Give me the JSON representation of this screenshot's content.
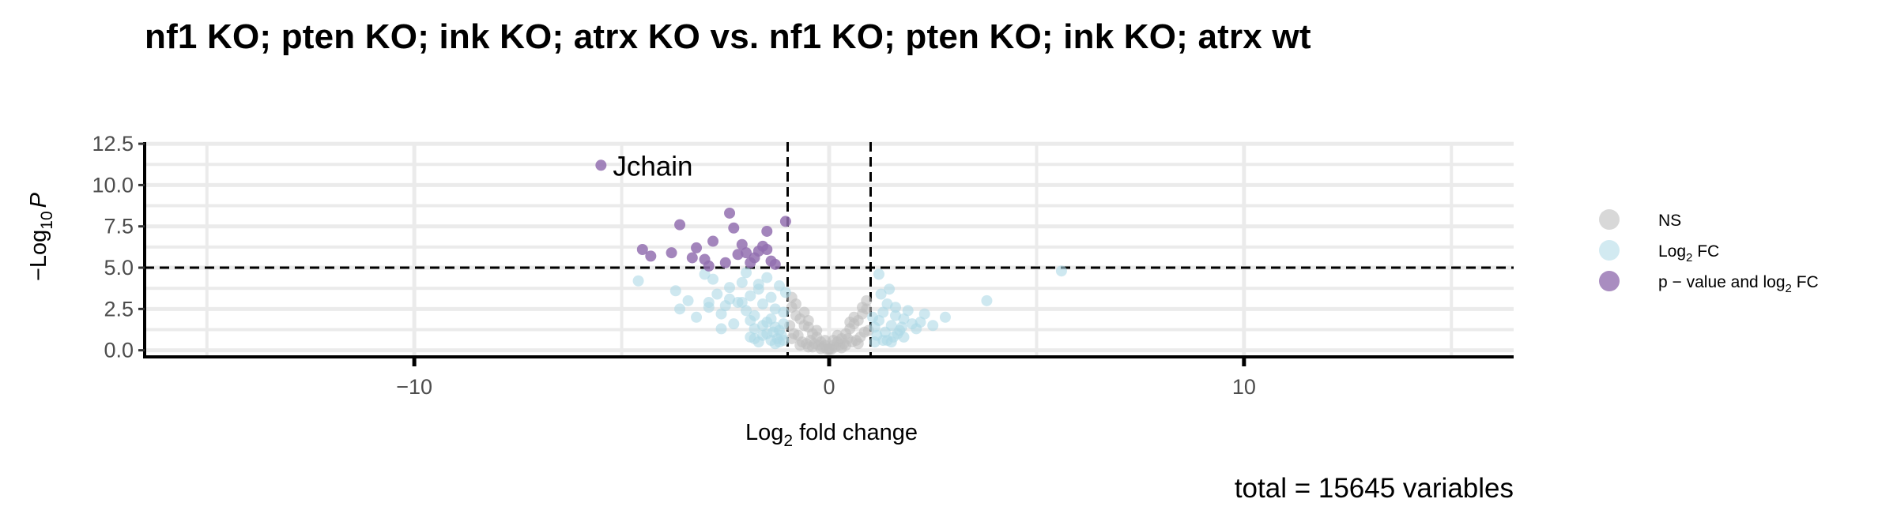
{
  "chart_data": {
    "type": "scatter",
    "title": "nf1 KO; pten KO; ink KO; atrx KO vs. nf1 KO; pten KO; ink KO; atrx wt",
    "xlabel_main": "Log",
    "xlabel_sub": "2",
    "xlabel_rest": " fold change",
    "ylabel_pre": "−Log",
    "ylabel_sub": "10",
    "ylabel_var": "P",
    "xlim": [
      -16.5,
      16.5
    ],
    "ylim": [
      -0.4,
      12.6
    ],
    "x_ticks": [
      -10,
      0,
      10
    ],
    "x_tick_labels": [
      "−10",
      "0",
      "10"
    ],
    "y_ticks": [
      0,
      2.5,
      5,
      7.5,
      10,
      12.5
    ],
    "y_tick_labels": [
      "0.0",
      "2.5",
      "5.0",
      "7.5",
      "10.0",
      "12.5"
    ],
    "fc_cutoff": 1,
    "p_cutoff_neglog10": 5,
    "grid": true,
    "legend_position": "right",
    "caption": "total = 15645 variables",
    "colors": {
      "ns": "#bebebe",
      "fc": "#add8e6",
      "both": "#9370b0"
    },
    "legend": [
      {
        "key": "ns",
        "label": "NS",
        "sub": "",
        "rest": ""
      },
      {
        "key": "fc",
        "label": "Log",
        "sub": "2",
        "rest": " FC"
      },
      {
        "key": "both",
        "label": "p − value and log",
        "sub": "2",
        "rest": " FC"
      }
    ],
    "labeled_points": [
      {
        "name": "Jchain",
        "x": -5.5,
        "y": 11.2
      }
    ],
    "series": [
      {
        "name": "NS",
        "key": "ns",
        "x": [
          -0.9,
          -0.7,
          -0.5,
          -0.3,
          -0.1,
          0,
          0.1,
          0.3,
          0.5,
          0.7,
          0.9,
          -0.8,
          -0.6,
          -0.4,
          -0.2,
          0.2,
          0.4,
          0.6,
          0.8,
          -0.3,
          0.2,
          -0.6,
          0.6,
          -0.5,
          0.5,
          -0.1,
          0.1,
          -0.8,
          0.8,
          -0.9,
          0.9,
          -0.35,
          0.35,
          -0.95,
          -0.85,
          0.95,
          0.85,
          -0.45,
          0.45,
          -0.15,
          0.15,
          -0.75,
          0.75,
          -0.25,
          0.25,
          -0.65,
          0.65,
          -0.55,
          0.55,
          0,
          -0.9,
          -0.7,
          0.7,
          -0.4,
          0.4,
          -0.2,
          0.3,
          -0.05,
          0.05,
          -0.5
        ],
        "y": [
          2.6,
          1.9,
          1.4,
          0.8,
          0.3,
          0.1,
          0.3,
          0.7,
          1.3,
          1.8,
          2.5,
          2.1,
          1.5,
          1.0,
          0.5,
          0.5,
          1.0,
          1.6,
          2.2,
          1.2,
          0.9,
          2.3,
          2.0,
          1.8,
          1.7,
          0.6,
          0.6,
          2.8,
          2.6,
          3.2,
          3.0,
          0.4,
          0.4,
          1.5,
          1.0,
          1.2,
          1.1,
          0.6,
          0.7,
          0.2,
          0.2,
          0.9,
          0.8,
          0.3,
          0.3,
          0.5,
          0.6,
          0.4,
          0.5,
          0.05,
          0.7,
          0.3,
          0.4,
          0.2,
          0.3,
          0.1,
          0.15,
          0.05,
          0.05,
          0.2
        ]
      },
      {
        "name": "Log2 FC",
        "key": "fc",
        "x": [
          -4.6,
          -3.7,
          -3.4,
          -2.9,
          -2.6,
          -2.4,
          -2.2,
          -2.0,
          -1.9,
          -1.8,
          -1.7,
          -1.6,
          -1.5,
          -1.4,
          -1.3,
          -1.2,
          -1.1,
          -1.05,
          -3.0,
          -2.7,
          -2.1,
          -1.9,
          -1.6,
          -1.4,
          -1.3,
          -1.2,
          -2.5,
          -2.3,
          -1.8,
          -1.5,
          -1.1,
          -3.2,
          -2.8,
          -2.0,
          -1.7,
          -1.35,
          -1.15,
          -2.6,
          -1.9,
          -1.5,
          -1.25,
          1.1,
          1.2,
          1.3,
          1.4,
          1.5,
          1.6,
          1.7,
          1.8,
          1.9,
          2.0,
          2.1,
          2.3,
          2.5,
          2.8,
          3.8,
          5.6,
          1.15,
          1.35,
          1.55,
          1.75,
          1.25,
          1.45,
          1.65,
          1.05,
          1.2,
          1.6,
          2.2,
          1.3,
          1.1,
          -1.4,
          -1.6,
          -2.1,
          -1.8,
          -1.2,
          -2.4,
          -1.3,
          -1.7,
          -2.9,
          -1.1,
          1.4,
          1.8,
          1.5,
          -3.6
        ],
        "y": [
          4.2,
          3.6,
          3.0,
          2.6,
          2.2,
          3.8,
          2.9,
          2.4,
          3.3,
          2.1,
          3.7,
          2.8,
          4.4,
          3.2,
          2.5,
          3.9,
          2.3,
          3.5,
          4.6,
          3.4,
          4.1,
          1.8,
          1.5,
          1.9,
          1.4,
          1.2,
          2.7,
          1.6,
          1.3,
          1.7,
          1.6,
          2.0,
          4.3,
          4.7,
          4.0,
          1.1,
          0.9,
          1.3,
          0.8,
          1.0,
          0.7,
          1.4,
          1.8,
          2.3,
          2.8,
          1.5,
          2.1,
          1.2,
          1.9,
          2.4,
          1.6,
          1.3,
          2.2,
          1.5,
          2.0,
          3.0,
          4.8,
          0.9,
          1.1,
          0.8,
          1.4,
          3.4,
          3.7,
          1.0,
          2.0,
          4.6,
          2.6,
          1.7,
          0.6,
          0.5,
          0.6,
          0.9,
          2.9,
          0.7,
          0.5,
          3.1,
          0.4,
          0.5,
          2.9,
          0.6,
          0.6,
          0.8,
          0.5,
          2.5
        ]
      },
      {
        "name": "p-value and log2 FC",
        "key": "both",
        "x": [
          -5.5,
          -2.4,
          -1.05,
          -3.6,
          -2.3,
          -1.5,
          -2.1,
          -4.5,
          -4.3,
          -3.8,
          -3.2,
          -3.0,
          -2.8,
          -2.5,
          -2.2,
          -1.8,
          -1.6,
          -1.4,
          -1.3,
          -2.9,
          -2.0,
          -1.7,
          -3.3,
          -1.9,
          -1.5
        ],
        "y": [
          11.2,
          8.3,
          7.8,
          7.6,
          7.4,
          7.2,
          6.4,
          6.1,
          5.7,
          5.9,
          6.2,
          5.5,
          6.6,
          5.3,
          5.8,
          5.6,
          6.3,
          5.4,
          5.2,
          5.1,
          5.9,
          6.0,
          5.6,
          5.3,
          6.1
        ]
      }
    ]
  }
}
